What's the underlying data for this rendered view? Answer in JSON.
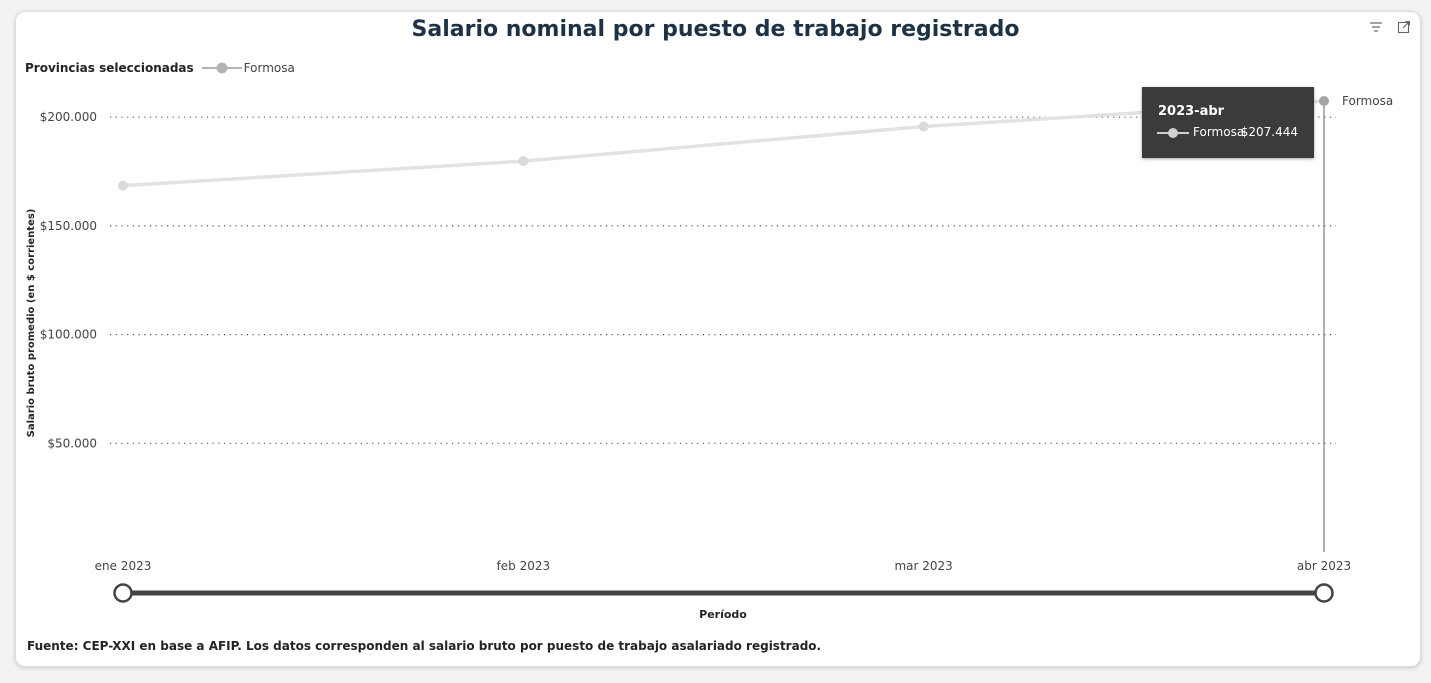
{
  "chart_data": {
    "type": "line",
    "title": "Salario nominal por puesto de trabajo registrado",
    "legend": {
      "title": "Provincias seleccionadas",
      "placement": "top-left"
    },
    "x": [
      "ene 2023",
      "feb 2023",
      "mar 2023",
      "abr 2023"
    ],
    "xlabel": "Período",
    "ylabel": "Salario bruto promedio (en $ corrientes)",
    "yticks": [
      "$50.000",
      "$100.000",
      "$150.000",
      "$200.000"
    ],
    "ytick_values": [
      50000,
      100000,
      150000,
      200000
    ],
    "ylim": [
      0,
      207444
    ],
    "grid": true,
    "series": [
      {
        "name": "Formosa",
        "values": [
          168500,
          179800,
          195700,
          207444
        ]
      }
    ],
    "end_label": "Formosa",
    "tooltip": {
      "period": "2023-abr",
      "series": "Formosa",
      "value": "$207.444"
    },
    "source": "Fuente: CEP-XXI en base a AFIP. Los datos corresponden al salario bruto por puesto de trabajo asalariado registrado."
  },
  "colors": {
    "line": "#e2e2e2",
    "marker": "#d9d9d9",
    "highlight": "#a6a6a6",
    "title": "#1e3246",
    "tooltip_bg": "#3b3b3b"
  },
  "icons": [
    "filter-icon",
    "focus-mode-icon"
  ]
}
